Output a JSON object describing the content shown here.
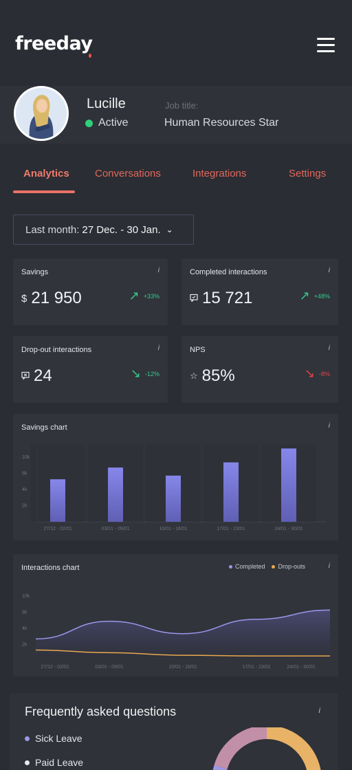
{
  "brand": {
    "logo_text": "freeday",
    "accent": "#e8574f"
  },
  "profile": {
    "name": "Lucille",
    "status": "Active",
    "status_color": "#2fd07a",
    "job_label": "Job title:",
    "job_title": "Human Resources Star"
  },
  "tabs": [
    {
      "label": "Analytics",
      "active": true
    },
    {
      "label": "Conversations",
      "active": false
    },
    {
      "label": "Integrations",
      "active": false
    },
    {
      "label": "Settings",
      "active": false
    }
  ],
  "date_range": {
    "prefix": "Last month:",
    "value": "27 Dec. - 30 Jan."
  },
  "kpis": {
    "savings": {
      "title": "Savings",
      "prefix": "$",
      "value": "21 950",
      "change": "+33%",
      "direction": "up",
      "color": "#36c98a"
    },
    "completed": {
      "title": "Completed interactions",
      "value": "15 721",
      "change": "+48%",
      "direction": "up",
      "color": "#36c98a"
    },
    "dropouts": {
      "title": "Drop-out interactions",
      "value": "24",
      "change": "-12%",
      "direction": "down",
      "color": "#36c98a"
    },
    "nps": {
      "title": "NPS",
      "value": "85%",
      "change": "-8%",
      "direction": "down",
      "color": "#e24545"
    }
  },
  "info_glyph": "i",
  "chart_data": [
    {
      "type": "bar",
      "title": "Savings chart",
      "categories": [
        "27/12 - 02/01",
        "03/01 - 09/01",
        "10/01 - 16/01",
        "17/01 - 23/01",
        "24/01 - 30/01"
      ],
      "values": [
        5.8,
        7.4,
        6.3,
        8.1,
        10.0
      ],
      "y_ticks": [
        "10k",
        "8k",
        "4k",
        "2k"
      ],
      "ylim": [
        0,
        10.5
      ],
      "bar_color": "#7d7ee0"
    },
    {
      "type": "area",
      "title": "Interactions chart",
      "categories": [
        "27/12 - 02/01",
        "03/01 - 09/01",
        "10/01 - 16/01",
        "17/01 - 23/01",
        "24/01 - 30/01"
      ],
      "y_ticks": [
        "10k",
        "8k",
        "4k",
        "2k"
      ],
      "ylim": [
        0,
        10.5
      ],
      "series": [
        {
          "name": "Completed",
          "color": "#9b97ec",
          "values": [
            2.8,
            5.5,
            3.6,
            5.8,
            7.2
          ]
        },
        {
          "name": "Drop-outs",
          "color": "#e9a94f",
          "values": [
            1.1,
            0.7,
            0.3,
            0.2,
            0.2
          ]
        }
      ],
      "legend_position": "top-right"
    },
    {
      "type": "pie",
      "title": "Frequently asked questions",
      "categories": [
        "Sick Leave",
        "Paid Leave"
      ],
      "colors": [
        "#9d98e6",
        "#e9e9ee",
        "#e8b267",
        "#c28fa8"
      ]
    }
  ]
}
